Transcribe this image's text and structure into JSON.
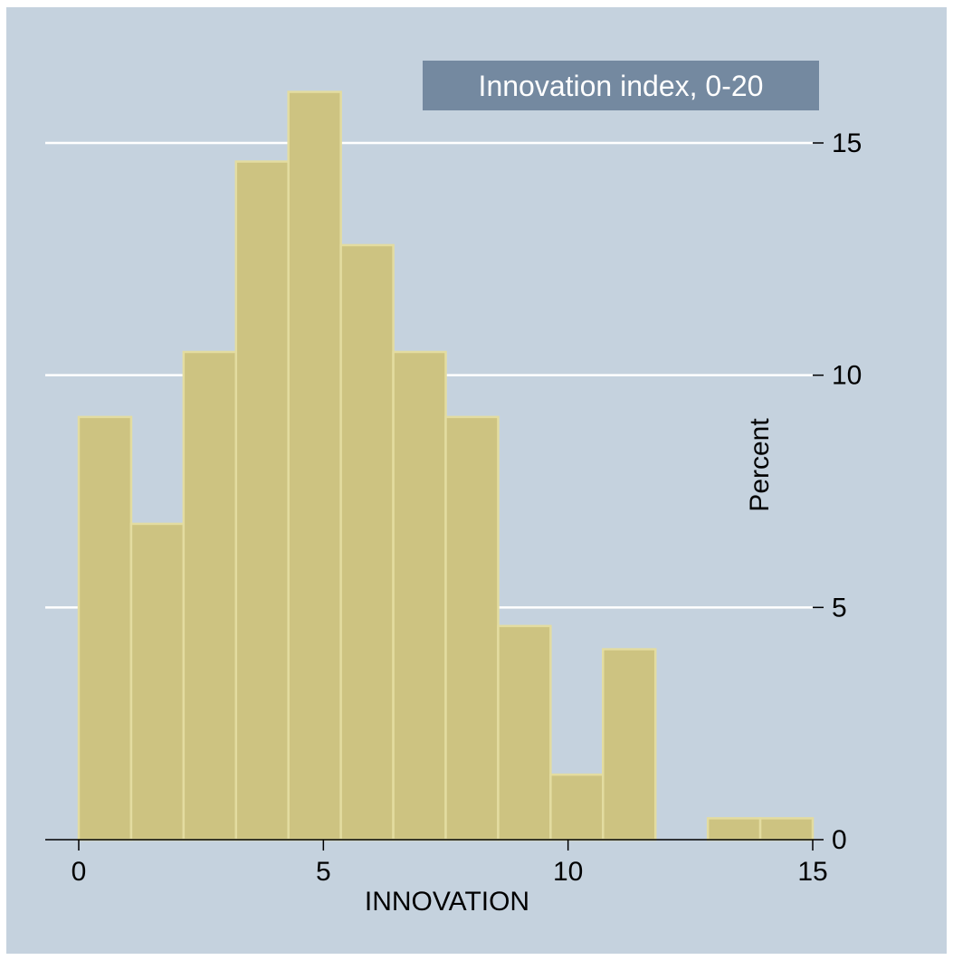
{
  "chart_data": {
    "type": "bar",
    "title": "Innovation index, 0-20",
    "xlabel": "INNOVATION",
    "ylabel": "Percent",
    "xlim": [
      0,
      15
    ],
    "ylim": [
      0,
      15
    ],
    "xticks": [
      0,
      5,
      10,
      15
    ],
    "yticks": [
      0,
      5,
      10,
      15
    ],
    "grid": true,
    "bins": [
      {
        "x0": 0,
        "x1": 1.0714,
        "value": 9.1
      },
      {
        "x0": 1.0714,
        "x1": 2.1429,
        "value": 6.8
      },
      {
        "x0": 2.1429,
        "x1": 3.2143,
        "value": 10.5
      },
      {
        "x0": 3.2143,
        "x1": 4.2857,
        "value": 14.6
      },
      {
        "x0": 4.2857,
        "x1": 5.3571,
        "value": 16.1
      },
      {
        "x0": 5.3571,
        "x1": 6.4286,
        "value": 12.8
      },
      {
        "x0": 6.4286,
        "x1": 7.5,
        "value": 10.5
      },
      {
        "x0": 7.5,
        "x1": 8.5714,
        "value": 9.1
      },
      {
        "x0": 8.5714,
        "x1": 9.6429,
        "value": 4.6
      },
      {
        "x0": 9.6429,
        "x1": 10.7143,
        "value": 1.4
      },
      {
        "x0": 10.7143,
        "x1": 11.7857,
        "value": 4.1
      },
      {
        "x0": 11.7857,
        "x1": 12.8571,
        "value": 0
      },
      {
        "x0": 12.8571,
        "x1": 13.9286,
        "value": 0.46
      },
      {
        "x0": 13.9286,
        "x1": 15,
        "value": 0.46
      }
    ],
    "colors": {
      "background": "#c5d2de",
      "bar_fill": "#cdc381",
      "bar_stroke": "#e3dca0",
      "grid": "#ffffff",
      "title_box": "#7489a0"
    }
  }
}
